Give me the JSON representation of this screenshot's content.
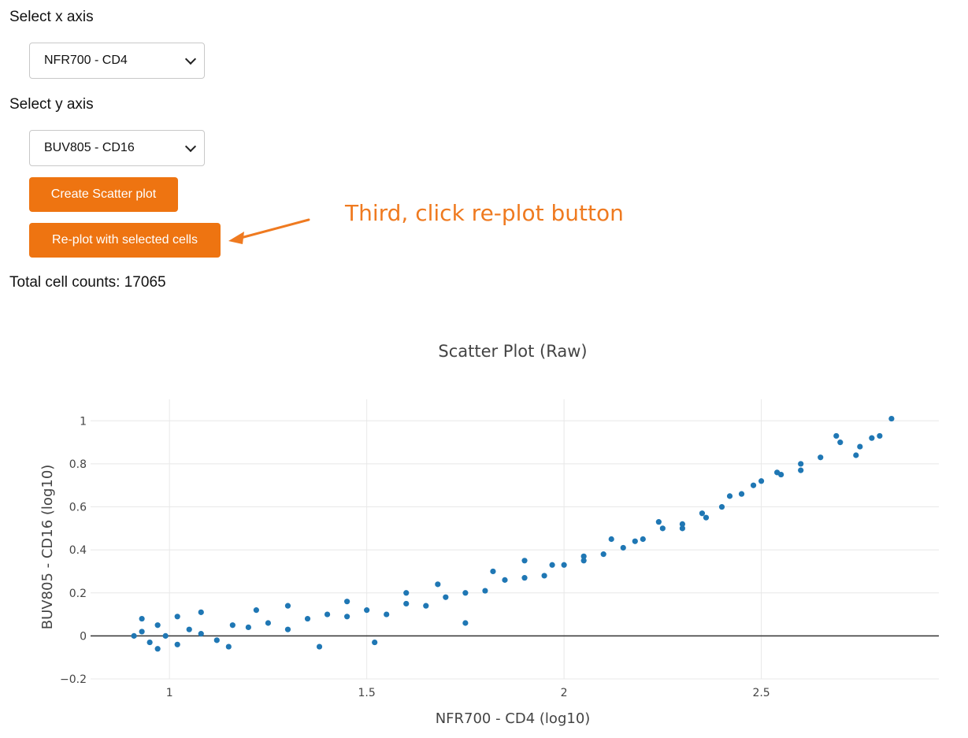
{
  "controls": {
    "x_label": "Select x axis",
    "x_value": "NFR700 - CD4",
    "y_label": "Select y axis",
    "y_value": "BUV805 - CD16",
    "create_button": "Create Scatter plot",
    "replot_button": "Re-plot with selected cells",
    "total_counts": "Total cell counts: 17065"
  },
  "annotation": {
    "text": "Third, click re-plot button",
    "color": "#ef7a20"
  },
  "colors": {
    "accent": "#ee7411",
    "marker": "#1f77b4"
  },
  "chart_data": {
    "type": "scatter",
    "title": "Scatter Plot (Raw)",
    "xlabel": "NFR700 - CD4 (log10)",
    "ylabel": "BUV805 - CD16 (log10)",
    "xlim": [
      0.8,
      2.95
    ],
    "ylim": [
      -0.2,
      1.1
    ],
    "xticks": [
      1,
      1.5,
      2,
      2.5
    ],
    "xtick_labels": [
      "1",
      "1.5",
      "2",
      "2.5"
    ],
    "yticks": [
      -0.2,
      0,
      0.2,
      0.4,
      0.6,
      0.8,
      1
    ],
    "ytick_labels": [
      "−0.2",
      "0",
      "0.2",
      "0.4",
      "0.6",
      "0.8",
      "1"
    ],
    "grid": true,
    "series": [
      {
        "x": [
          0.91,
          0.93,
          0.95,
          0.97,
          0.99,
          1.02,
          1.05,
          1.08,
          1.12,
          1.16,
          1.2,
          1.25,
          1.3,
          1.35,
          1.4,
          1.45,
          1.5,
          1.55,
          1.6,
          1.65,
          1.7,
          1.75,
          1.8,
          1.85,
          1.9,
          1.95,
          2.0,
          2.05,
          2.1,
          2.15,
          2.2,
          2.25,
          2.3,
          2.35,
          2.4,
          2.45,
          2.5,
          2.55,
          2.6,
          2.65,
          2.7,
          2.75,
          2.8,
          2.83,
          0.93,
          0.97,
          1.02,
          1.08,
          1.15,
          1.22,
          1.3,
          1.38,
          1.45,
          1.52,
          1.6,
          1.68,
          1.75,
          1.82,
          1.9,
          1.97,
          2.05,
          2.12,
          2.18,
          2.24,
          2.3,
          2.36,
          2.42,
          2.48,
          2.54,
          2.6,
          2.69,
          2.74,
          2.78
        ],
        "y": [
          0.0,
          0.02,
          -0.03,
          0.05,
          0.0,
          -0.04,
          0.03,
          0.01,
          -0.02,
          0.05,
          0.04,
          0.06,
          0.03,
          0.08,
          0.1,
          0.09,
          0.12,
          0.1,
          0.15,
          0.14,
          0.18,
          0.2,
          0.21,
          0.26,
          0.27,
          0.28,
          0.33,
          0.35,
          0.38,
          0.41,
          0.45,
          0.5,
          0.52,
          0.57,
          0.6,
          0.66,
          0.72,
          0.75,
          0.8,
          0.83,
          0.9,
          0.88,
          0.93,
          1.01,
          0.08,
          -0.06,
          0.09,
          0.11,
          -0.05,
          0.12,
          0.14,
          -0.05,
          0.16,
          -0.03,
          0.2,
          0.24,
          0.06,
          0.3,
          0.35,
          0.33,
          0.37,
          0.45,
          0.44,
          0.53,
          0.5,
          0.55,
          0.65,
          0.7,
          0.76,
          0.77,
          0.93,
          0.84,
          0.92
        ]
      }
    ]
  }
}
